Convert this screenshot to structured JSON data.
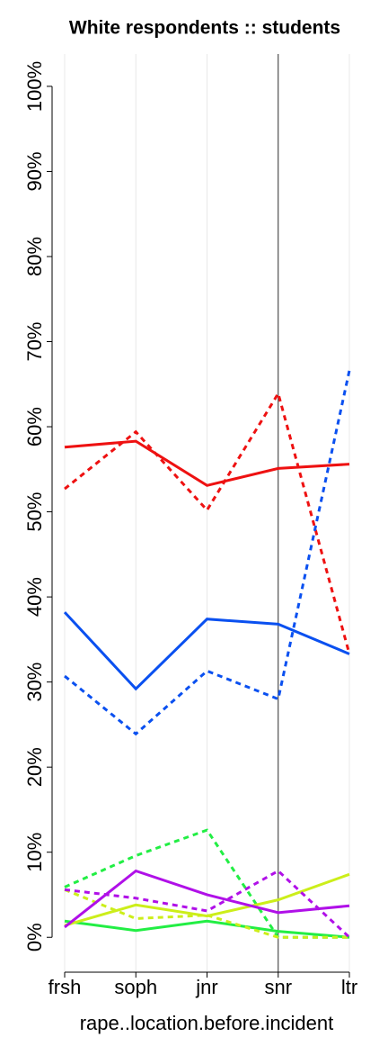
{
  "chart_data": {
    "type": "line",
    "title": "White respondents :: students",
    "x_label": "rape..location.before.incident",
    "categories": [
      "frsh",
      "soph",
      "jnr",
      "snr",
      "ltr"
    ],
    "ylim": [
      -4.1,
      103.8
    ],
    "yticks": [
      {
        "value": 0,
        "label": "0%"
      },
      {
        "value": 10,
        "label": "10%"
      },
      {
        "value": 20,
        "label": "20%"
      },
      {
        "value": 30,
        "label": "30%"
      },
      {
        "value": 40,
        "label": "40%"
      },
      {
        "value": 50,
        "label": "50%"
      },
      {
        "value": 60,
        "label": "60%"
      },
      {
        "value": 70,
        "label": "70%"
      },
      {
        "value": 80,
        "label": "80%"
      },
      {
        "value": 90,
        "label": "90%"
      },
      {
        "value": 100,
        "label": "100%"
      }
    ],
    "grid": true,
    "vline": "snr",
    "series": [
      {
        "color": "#ee1111",
        "style": "solid",
        "values": [
          57.6,
          58.3,
          53.1,
          55.1,
          55.6
        ]
      },
      {
        "color": "#ee1111",
        "style": "dashed",
        "values": [
          52.7,
          59.4,
          50.2,
          63.9,
          33.3
        ]
      },
      {
        "color": "#0a50f0",
        "style": "solid",
        "values": [
          38.2,
          29.2,
          37.4,
          36.8,
          33.3
        ]
      },
      {
        "color": "#0a50f0",
        "style": "dashed",
        "values": [
          30.7,
          23.9,
          31.3,
          28.0,
          66.6
        ]
      },
      {
        "color": "#22ee44",
        "style": "solid",
        "values": [
          1.9,
          0.8,
          1.9,
          0.7,
          0
        ]
      },
      {
        "color": "#22ee44",
        "style": "dashed",
        "values": [
          5.9,
          9.6,
          12.6,
          0,
          0
        ]
      },
      {
        "color": "#ccee1a",
        "style": "solid",
        "values": [
          1.4,
          3.8,
          2.5,
          4.4,
          7.4
        ]
      },
      {
        "color": "#ccee1a",
        "style": "dashed",
        "values": [
          5.6,
          2.2,
          2.6,
          0,
          0
        ]
      },
      {
        "color": "#b010e8",
        "style": "solid",
        "values": [
          1.2,
          7.8,
          5.0,
          2.9,
          3.7
        ]
      },
      {
        "color": "#b010e8",
        "style": "dashed",
        "values": [
          5.6,
          4.6,
          3.1,
          7.8,
          0
        ]
      }
    ]
  }
}
